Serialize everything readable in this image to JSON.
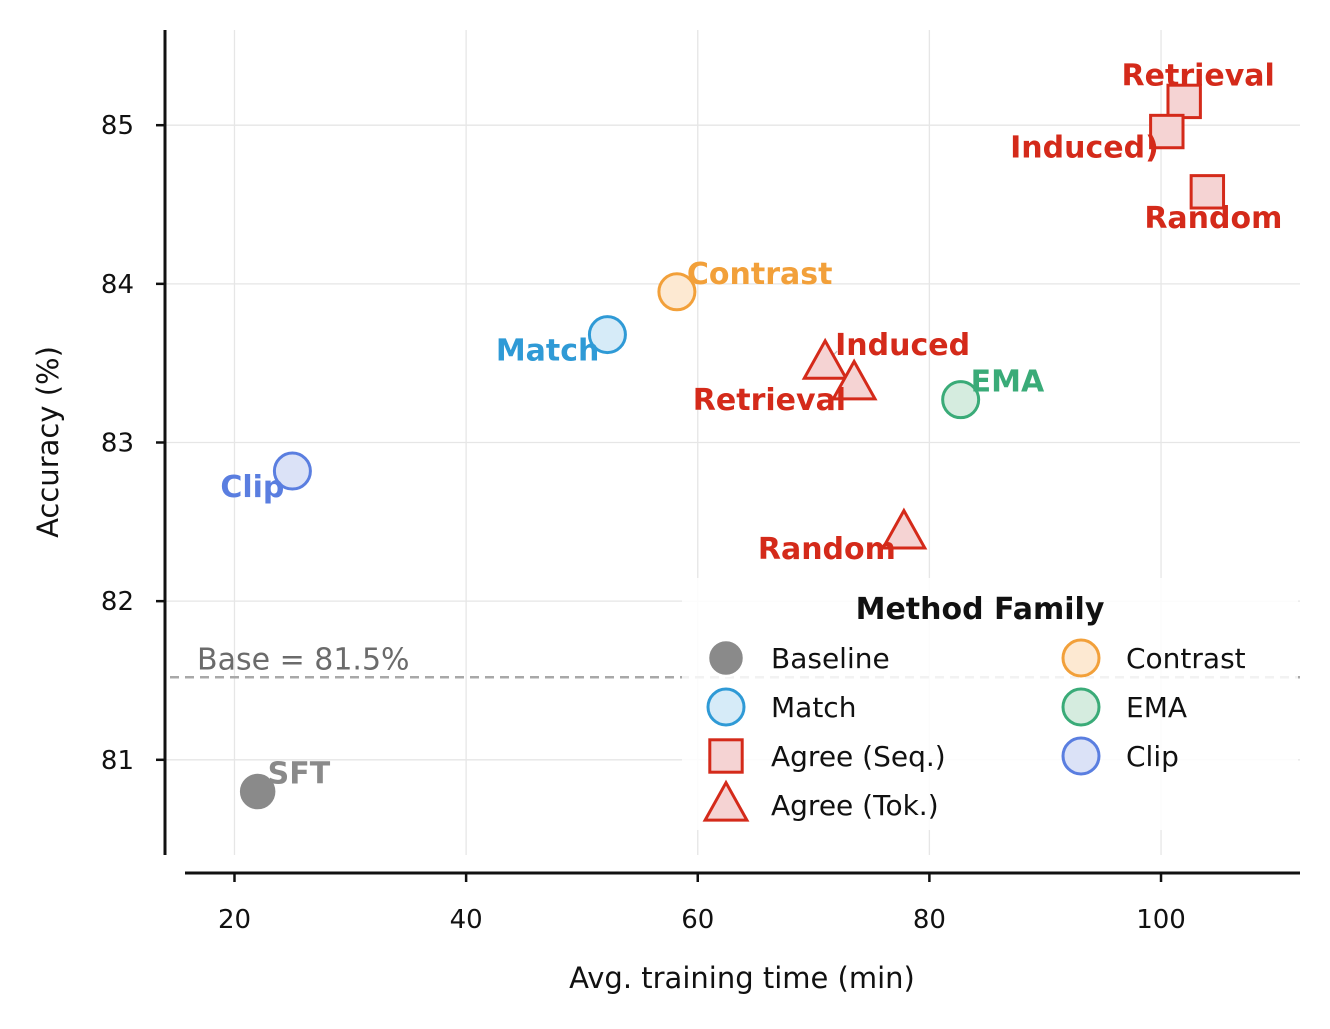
{
  "colors": {
    "baseline": "#8a8a8a",
    "match": "#2f9ad6",
    "agree": "#d42a1a",
    "contrast": "#f2a03a",
    "ema": "#3aab78",
    "clip": "#5a7ee0",
    "grid": "#e6e6e6",
    "refline": "#a8a8a8"
  },
  "chart_data": {
    "type": "scatter",
    "xlabel": "Avg. training time (min)",
    "ylabel": "Accuracy (%)",
    "xlim": [
      14,
      112
    ],
    "ylim": [
      80.4,
      85.6
    ],
    "xticks": [
      {
        "value": 20,
        "label": "20"
      },
      {
        "value": 40,
        "label": "40"
      },
      {
        "value": 60,
        "label": "60"
      },
      {
        "value": 80,
        "label": "80"
      },
      {
        "value": 100,
        "label": "100"
      }
    ],
    "yticks": [
      {
        "value": 81,
        "label": "81"
      },
      {
        "value": 82,
        "label": "82"
      },
      {
        "value": 83,
        "label": "83"
      },
      {
        "value": 84,
        "label": "84"
      },
      {
        "value": 85,
        "label": "85"
      }
    ],
    "grid": true,
    "legend": {
      "title": "Method Family",
      "placement": "lower-right",
      "entries": [
        {
          "label": "Baseline",
          "family": "baseline",
          "marker": "circle"
        },
        {
          "label": "Contrast",
          "family": "contrast",
          "marker": "circle"
        },
        {
          "label": "Match",
          "family": "match",
          "marker": "circle"
        },
        {
          "label": "EMA",
          "family": "ema",
          "marker": "circle"
        },
        {
          "label": "Agree (Seq.)",
          "family": "agree",
          "marker": "square"
        },
        {
          "label": "Clip",
          "family": "clip",
          "marker": "circle"
        },
        {
          "label": "Agree (Tok.)",
          "family": "agree",
          "marker": "triangle"
        }
      ]
    },
    "reference_line": {
      "y": 81.52,
      "label": "Base = 81.5%"
    },
    "points": [
      {
        "label": "SFT",
        "family": "baseline",
        "marker": "circle",
        "x": 22,
        "y": 80.8,
        "label_pos": "upper-right"
      },
      {
        "label": "Clip",
        "family": "clip",
        "marker": "circle",
        "x": 25,
        "y": 82.82,
        "label_pos": "lower-left"
      },
      {
        "label": "Match",
        "family": "match",
        "marker": "circle",
        "x": 52.2,
        "y": 83.68,
        "label_pos": "lower-left"
      },
      {
        "label": "Contrast",
        "family": "contrast",
        "marker": "circle",
        "x": 58.2,
        "y": 83.95,
        "label_pos": "upper-right"
      },
      {
        "label": "EMA",
        "family": "ema",
        "marker": "circle",
        "x": 82.7,
        "y": 83.27,
        "label_pos": "upper-right"
      },
      {
        "label": "Induced",
        "family": "agree",
        "marker": "triangle",
        "x": 71,
        "y": 83.5,
        "label_pos": "upper-right"
      },
      {
        "label": "Retrieval",
        "family": "agree",
        "marker": "triangle",
        "x": 73.5,
        "y": 83.37,
        "label_pos": "lower-left"
      },
      {
        "label": "Random",
        "family": "agree",
        "marker": "triangle",
        "x": 77.8,
        "y": 82.43,
        "label_pos": "lower-left"
      },
      {
        "label": "Retrieval",
        "family": "agree",
        "marker": "square",
        "x": 102,
        "y": 85.15,
        "label_pos": "upper"
      },
      {
        "label": "Induced)",
        "family": "agree",
        "marker": "square",
        "x": 100.5,
        "y": 84.96,
        "label_pos": "lower-left"
      },
      {
        "label": "Random",
        "family": "agree",
        "marker": "square",
        "x": 104,
        "y": 84.58,
        "label_pos": "lower"
      }
    ]
  }
}
